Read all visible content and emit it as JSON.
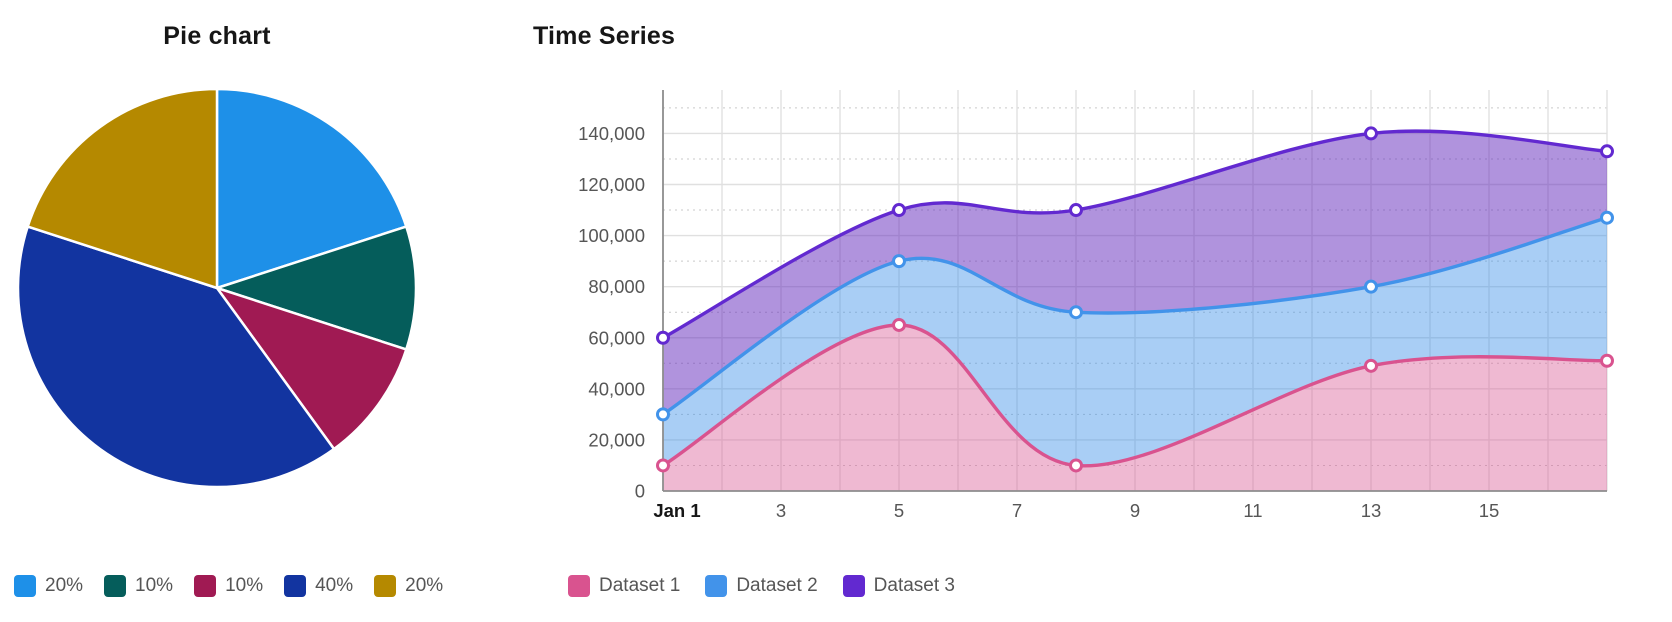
{
  "chart_data": [
    {
      "type": "pie",
      "title": "Pie chart",
      "start": "top",
      "direction": "clockwise",
      "legend_position": "bottom",
      "slices": [
        {
          "label": "20%",
          "value": 20,
          "color": "#1e90e8"
        },
        {
          "label": "10%",
          "value": 10,
          "color": "#055d5b"
        },
        {
          "label": "10%",
          "value": 10,
          "color": "#a01a53"
        },
        {
          "label": "40%",
          "value": 40,
          "color": "#1234a0"
        },
        {
          "label": "20%",
          "value": 20,
          "color": "#b58900"
        }
      ]
    },
    {
      "type": "area",
      "title": "Time Series",
      "x_unit": "day of January",
      "x": [
        1,
        5,
        8,
        13,
        17
      ],
      "series": [
        {
          "name": "Dataset 1",
          "color": "#d9538f",
          "fill": "rgba(219,99,155,0.45)",
          "values": [
            10000,
            65000,
            10000,
            49000,
            51000
          ]
        },
        {
          "name": "Dataset 2",
          "color": "#4293ea",
          "fill": "rgba(64,146,233,0.45)",
          "values": [
            30000,
            90000,
            70000,
            80000,
            107000
          ]
        },
        {
          "name": "Dataset 3",
          "color": "#6229d0",
          "fill": "rgba(97,39,187,0.50)",
          "values": [
            60000,
            110000,
            110000,
            140000,
            133000
          ]
        }
      ],
      "x_ticks": [
        {
          "day": 1,
          "label": "Jan 1",
          "bold": true
        },
        {
          "day": 3,
          "label": "3"
        },
        {
          "day": 5,
          "label": "5"
        },
        {
          "day": 7,
          "label": "7"
        },
        {
          "day": 9,
          "label": "9"
        },
        {
          "day": 11,
          "label": "11"
        },
        {
          "day": 13,
          "label": "13"
        },
        {
          "day": 15,
          "label": "15"
        }
      ],
      "y_ticks": [
        {
          "value": 0,
          "label": "0"
        },
        {
          "value": 20000,
          "label": "20,000"
        },
        {
          "value": 40000,
          "label": "40,000"
        },
        {
          "value": 60000,
          "label": "60,000"
        },
        {
          "value": 80000,
          "label": "80,000"
        },
        {
          "value": 100000,
          "label": "100,000"
        },
        {
          "value": 120000,
          "label": "120,000"
        },
        {
          "value": 140000,
          "label": "140,000"
        }
      ],
      "xlim_days": [
        1,
        17
      ],
      "ylim": [
        0,
        157000
      ],
      "grid": true,
      "legend_position": "bottom"
    }
  ]
}
